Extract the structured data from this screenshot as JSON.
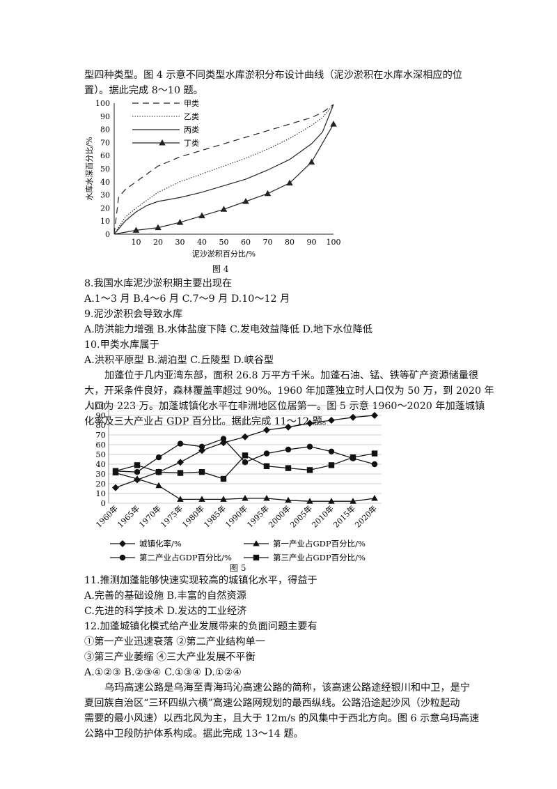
{
  "intro": {
    "line1": "型四种类型。图 4 示意不同类型水库淤积分布设计曲线（泥沙淤积在水库水深相应的位",
    "line2": "置）。据此完成 8～10 题。"
  },
  "q8": {
    "stem": "8.我国水库泥沙淤积期主要出现在",
    "options": "A.1～3 月 B.4～6 月 C.7～9 月 D.10～12 月"
  },
  "q9": {
    "stem": "9.泥沙淤积会导致水库",
    "options": "A.防洪能力增强 B.水体盐度下降 C.发电效益降低 D.地下水位降低"
  },
  "q10": {
    "stem": "10.甲类水库属于",
    "options": "A.洪积平原型 B.湖泊型 C.丘陵型 D.峡谷型"
  },
  "passage2": {
    "line1": "加蓬位于几内亚湾东部，面积 26.8 万平方千米。加蓬石油、锰、铁等矿产资源储量很",
    "line2": "大，开采条件良好，森林覆盖率超过 90%。1960 年加蓬独立时人口仅为 50 万，到 2020 年",
    "line3": "人口为 223  万。加蓬城镇化水平在非洲地区位居第一。图 5 示意 1960～2020 年加蓬城镇",
    "line4": "化率及三大产业占 GDP 百分比。据此完成 11～12 题。"
  },
  "q11": {
    "stem": "11.推测加蓬能够快速实现较高的城镇化水平，得益于",
    "line1": "A.完善的基础设施 B.丰富的自然资源",
    "line2": "C.先进的科学技术 D.发达的工业经济"
  },
  "q12": {
    "stem": "12.加蓬城镇化模式给产业发展带来的负面问题主要有",
    "line1": "①第一产业迅速衰落  ②第二产业结构单一",
    "line2": "③第三产业萎缩  ④三大产业发展不平衡",
    "options": "A.①②③ B.②③④ C.①③④ D.①②④"
  },
  "passage3": {
    "line1": "乌玛高速公路是乌海至青海玛沁高速公路的简称，该高速公路途经银川和中卫，是宁",
    "line2": "夏回族自治区“三环四纵六横”高速公路网规划的最西纵线。公路沿途起沙风（沙粒起动",
    "line3": "需要的最小风速）以西北风为主，且大于 12m/s 的风集中于西北方向。图 6 示意乌玛高速",
    "line4": "公路中卫段防护体系构成。据此完成 13～14 题。"
  },
  "chart_data": [
    {
      "type": "line",
      "caption": "图 4",
      "xlabel": "泥沙淤积百分比/%",
      "ylabel": "水库水深百分比/%",
      "xlim": [
        0,
        100
      ],
      "ylim": [
        0,
        100
      ],
      "xticks": [
        0,
        10,
        20,
        30,
        40,
        50,
        60,
        70,
        80,
        90,
        100
      ],
      "yticks": [
        0,
        10,
        20,
        30,
        40,
        50,
        60,
        70,
        80,
        90,
        100
      ],
      "legend_position": "top-left",
      "series": [
        {
          "name": "甲类",
          "style": "dashed",
          "x": [
            0,
            2,
            5,
            10,
            20,
            30,
            40,
            50,
            60,
            70,
            80,
            90,
            95,
            100
          ],
          "y": [
            0,
            28,
            34,
            40,
            52,
            59,
            64,
            69,
            74,
            79,
            84,
            89,
            93,
            99
          ]
        },
        {
          "name": "乙类",
          "style": "dotted",
          "x": [
            0,
            5,
            10,
            20,
            30,
            40,
            50,
            60,
            70,
            80,
            90,
            95,
            100
          ],
          "y": [
            0,
            13,
            20,
            32,
            40,
            46,
            52,
            58,
            65,
            73,
            83,
            89,
            99
          ]
        },
        {
          "name": "丙类",
          "style": "solid",
          "x": [
            0,
            5,
            10,
            15,
            20,
            30,
            40,
            50,
            60,
            70,
            80,
            90,
            95,
            100
          ],
          "y": [
            0,
            10,
            17,
            22,
            25,
            28,
            32,
            37,
            42,
            49,
            57,
            69,
            78,
            99
          ]
        },
        {
          "name": "丁类",
          "style": "solid-triangle",
          "x": [
            0,
            10,
            20,
            30,
            40,
            50,
            60,
            70,
            80,
            90,
            100
          ],
          "y": [
            0,
            3,
            5,
            9,
            14,
            19,
            25,
            31,
            39,
            55,
            84
          ]
        }
      ]
    },
    {
      "type": "line",
      "caption": "图 5",
      "categories": [
        "1960年",
        "1965年",
        "1970年",
        "1975年",
        "1980年",
        "1985年",
        "1990年",
        "1995年",
        "2000年",
        "2005年",
        "2010年",
        "2015年",
        "2020年"
      ],
      "ylim": [
        0,
        100
      ],
      "yticks": [
        0,
        10,
        20,
        30,
        40,
        50,
        60,
        70,
        80,
        90,
        100
      ],
      "grid": true,
      "legend_position": "bottom",
      "series": [
        {
          "name": "城镇化率/%",
          "marker": "diamond",
          "values": [
            16,
            24,
            32,
            42,
            54,
            62,
            68,
            75,
            78,
            82,
            85,
            88,
            90
          ]
        },
        {
          "name": "第一产业占GDP百分比/%",
          "marker": "triangle",
          "values": [
            31,
            25,
            18,
            4,
            4,
            4,
            5,
            5,
            3,
            2,
            2,
            2,
            5
          ]
        },
        {
          "name": "第二产业占GDP百分比/%",
          "marker": "circle",
          "values": [
            33,
            32,
            47,
            61,
            58,
            66,
            42,
            51,
            55,
            58,
            53,
            46,
            40
          ]
        },
        {
          "name": "第三产业占GDP百分比/%",
          "marker": "square",
          "values": [
            33,
            39,
            32,
            31,
            32,
            25,
            49,
            38,
            36,
            34,
            39,
            47,
            51
          ]
        }
      ]
    }
  ]
}
